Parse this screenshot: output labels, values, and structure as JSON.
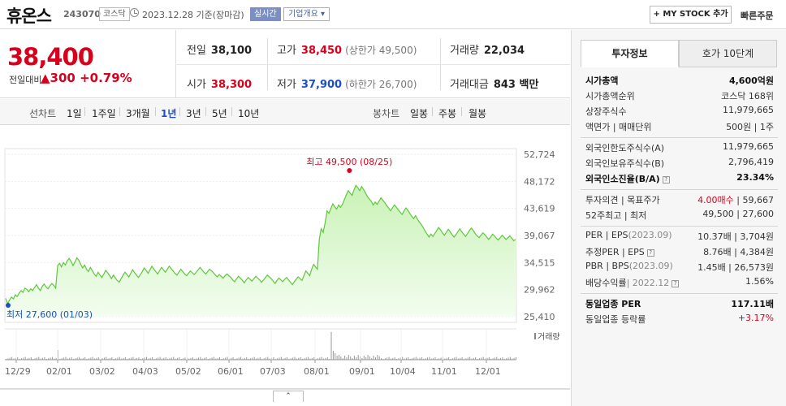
{
  "header": {
    "name": "휴온스",
    "code": "243070",
    "market": "코스닥",
    "date": "2023.12.28 기준(장마감)",
    "realtime": "실시간",
    "company_info": "기업개요 ▾",
    "my_stock": "+ MY STOCK 추가",
    "quick_order": "빠른주문"
  },
  "price": {
    "current": "38,400",
    "compare_label": "전일대비",
    "change": "▲300",
    "change_pct": "+0.79%"
  },
  "quote": {
    "prev_label": "전일",
    "prev": "38,100",
    "high_label": "고가",
    "high": "38,450",
    "upper_limit": "(상한가 49,500)",
    "volume_label": "거래량",
    "volume": "22,034",
    "open_label": "시가",
    "open": "38,300",
    "low_label": "저가",
    "low": "37,900",
    "lower_limit": "(하한가 26,700)",
    "amount_label": "거래대금",
    "amount": "843 백만"
  },
  "range": {
    "line_label": "선차트",
    "options": [
      "1일",
      "1주일",
      "3개월",
      "1년",
      "3년",
      "5년",
      "10년"
    ],
    "active": "1년",
    "candle_label": "봉차트",
    "candle_options": [
      "일봉",
      "주봉",
      "월봉"
    ]
  },
  "chart_data": {
    "type": "area",
    "y_ticks": [
      "52,724",
      "48,172",
      "43,619",
      "39,067",
      "34,515",
      "29,962",
      "25,410"
    ],
    "ylim": [
      25410,
      52724
    ],
    "x_ticks": [
      "12/29",
      "02/01",
      "03/02",
      "04/03",
      "05/02",
      "06/01",
      "07/03",
      "08/01",
      "09/01",
      "10/04",
      "11/01",
      "12/01"
    ],
    "high_annotation": "최고 49,500 (08/25)",
    "low_annotation": "최저 27,600 (01/03)",
    "volume_label": "거래량",
    "colors": {
      "line": "#5fc73c",
      "fill_top": "#c9f2b6",
      "fill_bottom": "#f3fdf0",
      "high": "#d9001b",
      "low": "#1a4fc6"
    },
    "values": [
      28500,
      27600,
      28200,
      28700,
      28400,
      29100,
      28800,
      29400,
      29800,
      29500,
      30200,
      30000,
      29600,
      30100,
      29800,
      30300,
      30800,
      30200,
      29800,
      30500,
      30900,
      30400,
      30100,
      30600,
      31000,
      30700,
      30200,
      34000,
      34400,
      33800,
      34500,
      34100,
      34800,
      35200,
      34700,
      34000,
      34600,
      35300,
      34900,
      34200,
      33600,
      34100,
      33400,
      33000,
      33700,
      33200,
      32600,
      32200,
      32900,
      32400,
      32000,
      32600,
      33200,
      32800,
      32300,
      31800,
      32400,
      31900,
      31500,
      31200,
      31800,
      32400,
      32900,
      32500,
      32100,
      32700,
      33300,
      32800,
      32400,
      32000,
      32500,
      33000,
      33600,
      33200,
      32700,
      33300,
      33900,
      33400,
      33000,
      32600,
      33200,
      33700,
      33300,
      32900,
      33400,
      33900,
      33500,
      33100,
      32700,
      32400,
      32900,
      33400,
      33000,
      32600,
      32300,
      32700,
      33100,
      32800,
      32500,
      32900,
      33300,
      33700,
      33300,
      32900,
      32600,
      33000,
      33400,
      33100,
      32800,
      32400,
      32100,
      32500,
      32200,
      31900,
      32300,
      32600,
      32300,
      32000,
      31600,
      31300,
      31800,
      32200,
      31900,
      31500,
      31100,
      31600,
      32000,
      31700,
      31400,
      31800,
      32200,
      31900,
      31600,
      31200,
      31600,
      32000,
      32400,
      32100,
      31800,
      31400,
      31000,
      31500,
      31900,
      31600,
      31300,
      31700,
      32000,
      31600,
      31200,
      30800,
      31300,
      31700,
      32100,
      31800,
      31500,
      32300,
      33100,
      32700,
      32300,
      33400,
      34200,
      33800,
      33400,
      38500,
      40200,
      39600,
      41200,
      43200,
      42800,
      43600,
      44400,
      43900,
      43500,
      44200,
      43800,
      44300,
      45100,
      45900,
      46600,
      46200,
      45800,
      46700,
      47500,
      47100,
      46600,
      47300,
      46800,
      46200,
      45600,
      45200,
      44800,
      44200,
      44700,
      44300,
      44800,
      45400,
      45000,
      44600,
      44100,
      43700,
      43200,
      43700,
      44200,
      43800,
      43400,
      43000,
      42600,
      43200,
      43700,
      43300,
      42800,
      42300,
      41900,
      42400,
      41800,
      41300,
      40900,
      40400,
      39800,
      39300,
      38800,
      39300,
      38900,
      39400,
      39900,
      40400,
      40000,
      39500,
      39100,
      39600,
      40100,
      39700,
      39200,
      38800,
      39200,
      39700,
      40200,
      39700,
      39300,
      38900,
      39400,
      39900,
      40300,
      39900,
      39400,
      39000,
      38700,
      39100,
      39500,
      39200,
      38800,
      38400,
      38800,
      39300,
      39000,
      38600,
      38300,
      38700,
      39100,
      38800,
      38400,
      38700,
      39000,
      38600,
      38200,
      38400
    ]
  },
  "side": {
    "tab_active": "투자정보",
    "tab_other": "호가 10단계",
    "rows": [
      {
        "k": "시가총액",
        "v": "4,600억원"
      },
      {
        "k": "시가총액순위",
        "v": "코스닥 168위"
      },
      {
        "k": "상장주식수",
        "v": "11,979,665"
      },
      {
        "k": "액면가 | 매매단위",
        "v": "500원 | 1주"
      },
      {
        "k": "외국인한도주식수(A)",
        "v": "11,979,665"
      },
      {
        "k": "외국인보유주식수(B)",
        "v": "2,796,419"
      },
      {
        "k": "외국인소진율(B/A)",
        "v": "23.34%"
      },
      {
        "k": "투자의견 | 목표주가",
        "v_red": "4.00매수",
        "v": "| 59,667"
      },
      {
        "k": "52주최고 | 최저",
        "v": "49,500 | 27,600"
      },
      {
        "k": "PER | EPS",
        "k_gray": "(2023.09)",
        "v": "10.37배 | 3,704원"
      },
      {
        "k": "추정PER | EPS",
        "v": "8.76배 | 4,384원"
      },
      {
        "k": "PBR | BPS",
        "k_gray": "(2023.09)",
        "v": "1.45배 | 26,573원"
      },
      {
        "k": "배당수익률",
        "k_gray": "| 2022.12",
        "v": "1.56%"
      },
      {
        "k": "동일업종 PER",
        "v": "117.11배"
      },
      {
        "k": "동일업종 등락률",
        "v": "+3.17%"
      }
    ],
    "q_mark": "?"
  },
  "collapse": "⌃"
}
